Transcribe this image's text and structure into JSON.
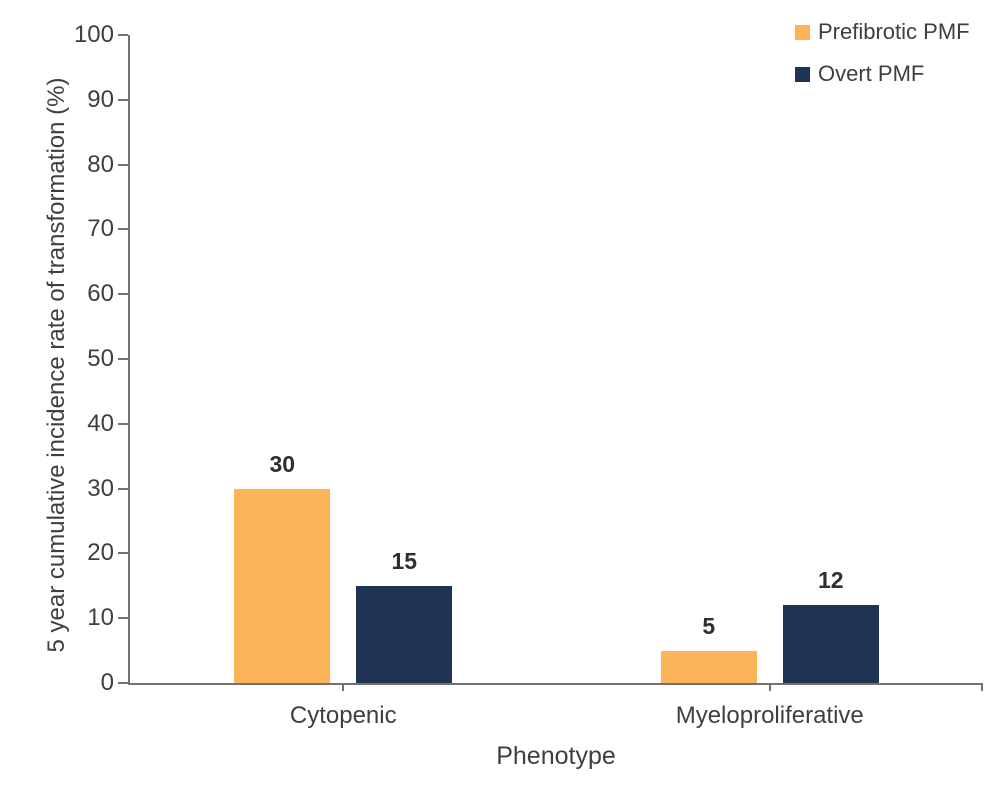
{
  "chart_data": {
    "type": "bar",
    "title": "",
    "xlabel": "Phenotype",
    "ylabel": "5 year cumulative incidence rate of transformation (%)",
    "categories": [
      "Cytopenic",
      "Myeloproliferative"
    ],
    "series": [
      {
        "name": "Prefibrotic PMF",
        "color": "#FBB45A",
        "values": [
          30,
          5
        ]
      },
      {
        "name": "Overt PMF",
        "color": "#1F3455",
        "values": [
          15,
          12
        ]
      }
    ],
    "ylim": [
      0,
      100
    ],
    "yticks": [
      0,
      10,
      20,
      30,
      40,
      50,
      60,
      70,
      80,
      90,
      100
    ],
    "grid": false,
    "legend_position": "top-right",
    "show_value_labels": true
  },
  "colors": {
    "axis": "#717174",
    "text": "#3F3F41",
    "value_label": "#2F2F31",
    "background": "#FFFFFF"
  }
}
